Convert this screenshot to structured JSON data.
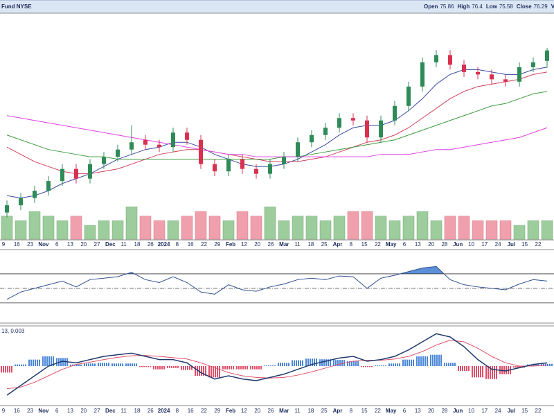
{
  "header": {
    "symbol": "Fund NYSE",
    "quote": [
      {
        "label": "Open",
        "value": 75.86
      },
      {
        "label": "High",
        "value": 76.4
      },
      {
        "label": "Low",
        "value": 75.58
      },
      {
        "label": "Close",
        "value": 76.29
      },
      {
        "label": "Vol"
      }
    ]
  },
  "chart_data": [
    {
      "type": "candlestick",
      "ylim": [
        68.5,
        77.8
      ],
      "up_color": "#2e8b57",
      "down_color": "#d9304f",
      "open": [
        69.6,
        69.9,
        70.2,
        70.5,
        70.9,
        71.4,
        71.0,
        71.6,
        71.9,
        72.2,
        72.6,
        72.4,
        72.3,
        72.9,
        72.6,
        71.6,
        71.3,
        71.8,
        71.4,
        71.2,
        71.6,
        71.9,
        72.5,
        72.8,
        73.1,
        73.5,
        73.4,
        72.7,
        73.4,
        74.0,
        74.8,
        75.8,
        76.1,
        75.7,
        75.4,
        75.3,
        75.1,
        75.0,
        75.6,
        75.86
      ],
      "high": [
        70.1,
        70.4,
        70.7,
        71.1,
        71.6,
        71.6,
        71.8,
        72.1,
        72.4,
        73.2,
        72.8,
        72.6,
        73.1,
        73.1,
        72.8,
        71.8,
        72.0,
        72.0,
        71.6,
        71.8,
        72.1,
        72.7,
        73.0,
        73.3,
        73.7,
        73.7,
        73.6,
        73.6,
        74.2,
        75.0,
        76.0,
        76.3,
        76.3,
        75.9,
        75.6,
        75.5,
        75.3,
        75.8,
        76.0,
        76.4
      ],
      "low": [
        69.4,
        69.7,
        70.0,
        70.3,
        70.7,
        70.8,
        70.8,
        71.4,
        71.7,
        72.0,
        72.2,
        72.1,
        72.1,
        72.4,
        71.4,
        71.1,
        71.1,
        71.2,
        71.0,
        71.0,
        71.4,
        71.7,
        72.3,
        72.6,
        72.9,
        73.2,
        72.5,
        72.5,
        73.2,
        73.8,
        74.6,
        75.6,
        75.5,
        75.2,
        75.1,
        74.9,
        74.8,
        74.8,
        75.4,
        75.58
      ],
      "close": [
        69.9,
        70.2,
        70.5,
        70.9,
        71.4,
        71.0,
        71.6,
        71.9,
        72.2,
        72.5,
        72.4,
        72.3,
        72.9,
        72.6,
        71.6,
        71.3,
        71.8,
        71.4,
        71.2,
        71.6,
        71.9,
        72.5,
        72.8,
        73.1,
        73.5,
        73.4,
        72.7,
        73.4,
        74.0,
        74.8,
        75.8,
        76.1,
        75.7,
        75.4,
        75.3,
        75.1,
        75.0,
        75.6,
        75.8,
        76.29
      ],
      "moving_averages": [
        {
          "color": "#3a4aa0",
          "values": [
            70.3,
            70.2,
            70.3,
            70.5,
            70.8,
            71.0,
            71.2,
            71.5,
            71.8,
            72.0,
            72.2,
            72.3,
            72.5,
            72.5,
            72.3,
            72.0,
            71.8,
            71.6,
            71.5,
            71.5,
            71.6,
            71.8,
            72.1,
            72.4,
            72.8,
            73.1,
            73.2,
            73.2,
            73.4,
            73.8,
            74.3,
            74.9,
            75.3,
            75.5,
            75.5,
            75.4,
            75.3,
            75.3,
            75.5,
            75.6
          ]
        },
        {
          "color": "#d0405a",
          "values": [
            72.3,
            72.0,
            71.7,
            71.5,
            71.3,
            71.2,
            71.2,
            71.3,
            71.4,
            71.6,
            71.8,
            72.0,
            72.1,
            72.2,
            72.2,
            72.1,
            72.0,
            71.9,
            71.8,
            71.7,
            71.7,
            71.7,
            71.8,
            71.9,
            72.1,
            72.3,
            72.5,
            72.6,
            72.8,
            73.1,
            73.5,
            73.9,
            74.3,
            74.6,
            74.8,
            74.9,
            75.0,
            75.1,
            75.3,
            75.4
          ]
        },
        {
          "color": "#3c9a3c",
          "values": [
            72.8,
            72.6,
            72.4,
            72.2,
            72.1,
            72.0,
            71.9,
            71.9,
            71.8,
            71.8,
            71.8,
            71.8,
            71.8,
            71.8,
            71.8,
            71.8,
            71.8,
            71.8,
            71.8,
            71.8,
            71.9,
            71.9,
            72.0,
            72.1,
            72.2,
            72.3,
            72.4,
            72.5,
            72.6,
            72.8,
            73.0,
            73.2,
            73.4,
            73.6,
            73.8,
            74.0,
            74.1,
            74.3,
            74.5,
            74.6
          ]
        },
        {
          "color": "#e040e0",
          "values": [
            73.6,
            73.5,
            73.4,
            73.3,
            73.2,
            73.1,
            73.0,
            72.9,
            72.8,
            72.7,
            72.6,
            72.5,
            72.4,
            72.3,
            72.2,
            72.1,
            72.0,
            72.0,
            71.9,
            71.9,
            71.9,
            71.9,
            71.9,
            71.9,
            71.9,
            71.9,
            71.9,
            72.0,
            72.0,
            72.0,
            72.1,
            72.2,
            72.2,
            72.3,
            72.4,
            72.5,
            72.6,
            72.7,
            72.9,
            73.1
          ]
        }
      ],
      "volume": {
        "ylim": [
          0,
          9
        ],
        "values": [
          5,
          4,
          6,
          5,
          4,
          5,
          3,
          4,
          4,
          7,
          5,
          4,
          4,
          5,
          6,
          5,
          4,
          6,
          5,
          7,
          4,
          5,
          5,
          4,
          5,
          6,
          6,
          5,
          4,
          5,
          6,
          4,
          5,
          5,
          4,
          4,
          4,
          3,
          4,
          4
        ]
      },
      "xtick_labels": [
        "9",
        "16",
        "23",
        "Nov",
        "6",
        "13",
        "20",
        "27",
        "Dec",
        "11",
        "18",
        "26",
        "2024",
        "8",
        "16",
        "22",
        "29",
        "Feb",
        "12",
        "20",
        "26",
        "Mar",
        "11",
        "18",
        "25",
        "Apr",
        "8",
        "15",
        "22",
        "May",
        "6",
        "13",
        "20",
        "28",
        "Jun",
        "10",
        "17",
        "24",
        "Jul",
        "15",
        "22"
      ]
    },
    {
      "type": "line",
      "color": "#2f4f8f",
      "ylim": [
        8,
        98.5
      ],
      "levels": [
        30,
        50,
        70
      ],
      "fill_above": 70,
      "fill_color": "#5b8fd8",
      "values": [
        35,
        45,
        50,
        55,
        60,
        52,
        62,
        64,
        66,
        72,
        62,
        58,
        66,
        58,
        45,
        42,
        55,
        48,
        46,
        52,
        56,
        62,
        64,
        62,
        67,
        66,
        50,
        64,
        68,
        73,
        78,
        80,
        62,
        55,
        52,
        50,
        48,
        56,
        62,
        60
      ]
    },
    {
      "type": "macd",
      "label": "13, 0.003",
      "ylim": [
        -1.2,
        1.2
      ],
      "macd": {
        "color": "#1f3a6e",
        "values": [
          -0.9,
          -0.6,
          -0.3,
          0.0,
          0.15,
          0.1,
          0.2,
          0.3,
          0.35,
          0.4,
          0.3,
          0.2,
          0.2,
          0.1,
          -0.2,
          -0.4,
          -0.3,
          -0.4,
          -0.45,
          -0.35,
          -0.25,
          -0.1,
          0.05,
          0.15,
          0.25,
          0.3,
          0.15,
          0.2,
          0.3,
          0.5,
          0.75,
          1.0,
          0.9,
          0.6,
          0.2,
          -0.1,
          -0.15,
          -0.05,
          0.05,
          0.1
        ]
      },
      "signal": {
        "color": "#e0506a",
        "values": [
          -0.7,
          -0.65,
          -0.5,
          -0.3,
          -0.1,
          0.05,
          0.12,
          0.2,
          0.27,
          0.32,
          0.33,
          0.3,
          0.26,
          0.22,
          0.1,
          -0.05,
          -0.2,
          -0.3,
          -0.35,
          -0.37,
          -0.35,
          -0.28,
          -0.18,
          -0.06,
          0.06,
          0.15,
          0.18,
          0.18,
          0.22,
          0.3,
          0.45,
          0.65,
          0.8,
          0.75,
          0.55,
          0.3,
          0.1,
          0.0,
          0.0,
          0.03
        ]
      },
      "histogram": {
        "up_color": "#4a86d8",
        "down_color": "#e0506a",
        "values": [
          -0.2,
          0.05,
          0.2,
          0.3,
          0.25,
          0.05,
          0.08,
          0.1,
          0.08,
          0.08,
          -0.03,
          -0.1,
          -0.06,
          -0.12,
          -0.3,
          -0.35,
          -0.1,
          -0.1,
          -0.1,
          0.02,
          0.1,
          0.18,
          0.23,
          0.21,
          0.19,
          0.15,
          -0.03,
          0.02,
          0.08,
          0.2,
          0.3,
          0.35,
          0.1,
          -0.15,
          -0.35,
          -0.4,
          -0.25,
          -0.05,
          0.05,
          0.07
        ]
      }
    }
  ]
}
